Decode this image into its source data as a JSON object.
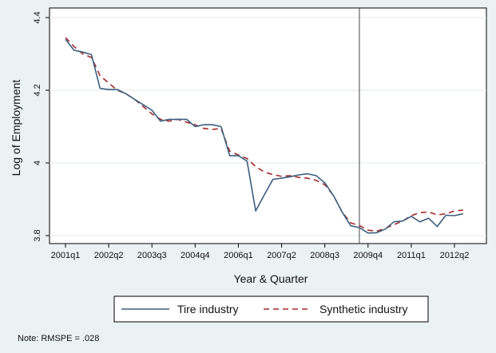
{
  "chart_data": {
    "type": "line",
    "xlabel": "Year & Quarter",
    "ylabel": "Log of Employment",
    "ylim": [
      3.8,
      4.4
    ],
    "y_ticks": [
      3.8,
      4,
      4.2,
      4.4
    ],
    "y_tick_labels": [
      "3.8",
      "4",
      "4.2",
      "4.4"
    ],
    "x_range": [
      0,
      46
    ],
    "x_ticks": [
      0,
      5,
      10,
      15,
      20,
      25,
      30,
      35,
      40,
      45
    ],
    "x_tick_labels": [
      "2001q1",
      "2002q2",
      "2003q3",
      "2004q4",
      "2006q1",
      "2007q2",
      "2008q3",
      "2009q4",
      "2011q1",
      "2012q2"
    ],
    "reference_line_x": 34,
    "grid": true,
    "legend_position": "bottom",
    "series": [
      {
        "name": "Tire industry",
        "color": "#3b5e7e",
        "dash": "solid",
        "x": [
          0,
          1,
          2,
          3,
          4,
          5,
          6,
          7,
          8,
          9,
          10,
          11,
          12,
          13,
          14,
          15,
          16,
          17,
          18,
          19,
          20,
          21,
          22,
          23,
          24,
          25,
          26,
          27,
          28,
          29,
          30,
          31,
          32,
          33,
          34,
          35,
          36,
          37,
          38,
          39,
          40,
          41,
          42,
          43,
          44,
          45,
          46
        ],
        "values": [
          4.34,
          4.31,
          4.305,
          4.298,
          4.205,
          4.202,
          4.202,
          4.19,
          4.175,
          4.16,
          4.145,
          4.115,
          4.12,
          4.12,
          4.12,
          4.1,
          4.105,
          4.105,
          4.1,
          4.02,
          4.02,
          4.005,
          3.868,
          3.912,
          3.955,
          3.958,
          3.962,
          3.967,
          3.97,
          3.965,
          3.945,
          3.91,
          3.865,
          3.827,
          3.822,
          3.807,
          3.808,
          3.818,
          3.838,
          3.84,
          3.853,
          3.838,
          3.848,
          3.825,
          3.856,
          3.855,
          3.86
        ]
      },
      {
        "name": "Synthetic industry",
        "color": "#a52a2a",
        "dash": "dashed",
        "x": [
          0,
          1,
          2,
          3,
          4,
          5,
          6,
          7,
          8,
          9,
          10,
          11,
          12,
          13,
          14,
          15,
          16,
          17,
          18,
          19,
          20,
          21,
          22,
          23,
          24,
          25,
          26,
          27,
          28,
          29,
          30,
          31,
          32,
          33,
          34,
          35,
          36,
          37,
          38,
          39,
          40,
          41,
          42,
          43,
          44,
          45,
          46
        ],
        "values": [
          4.345,
          4.32,
          4.3,
          4.29,
          4.24,
          4.22,
          4.2,
          4.19,
          4.175,
          4.155,
          4.135,
          4.12,
          4.115,
          4.12,
          4.112,
          4.105,
          4.095,
          4.092,
          4.095,
          4.032,
          4.022,
          4.012,
          3.99,
          3.975,
          3.968,
          3.963,
          3.965,
          3.96,
          3.958,
          3.952,
          3.94,
          3.91,
          3.865,
          3.835,
          3.828,
          3.815,
          3.812,
          3.82,
          3.83,
          3.84,
          3.855,
          3.863,
          3.865,
          3.857,
          3.86,
          3.868,
          3.87
        ]
      }
    ],
    "note": "Note: RMSPE = .028"
  },
  "colors": {
    "background": "#eaf2f3",
    "plot_background": "#ffffff",
    "grid": "#e3e8ea"
  }
}
